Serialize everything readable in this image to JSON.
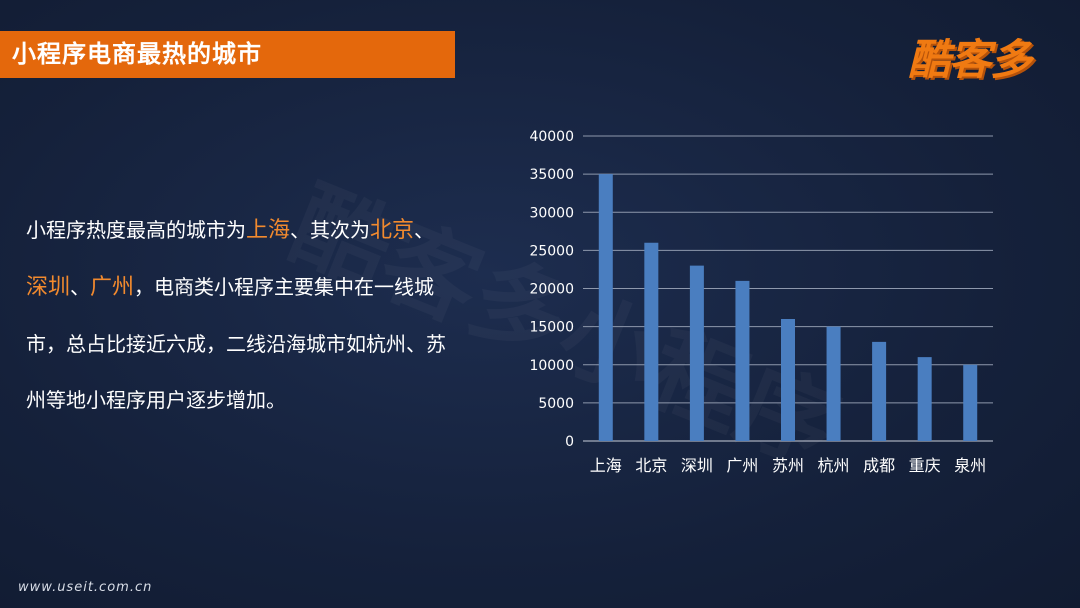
{
  "slide": {
    "title": "小程序电商最热的城市",
    "logo": "酷客多",
    "watermark": "酷客多小程序",
    "footer": "www.useit.com.cn",
    "colors": {
      "accent": "#e4680c",
      "highlight": "#f28a2e",
      "bar": "#4a7ec0",
      "background": "#16223d"
    }
  },
  "paragraph": {
    "part1": "小程序热度最高的城市为",
    "city1": "上海",
    "part2": "、其次为",
    "city2": "北京",
    "part3": "、",
    "city3": "深圳",
    "part4": "、",
    "city4": "广州",
    "part5": "，电商类小程序主要集中在一线城市，总占比接近六成，二线沿海城市如杭州、苏州等地小程序用户逐步增加。"
  },
  "chart_data": {
    "type": "bar",
    "categories": [
      "上海",
      "北京",
      "深圳",
      "广州",
      "苏州",
      "杭州",
      "成都",
      "重庆",
      "泉州"
    ],
    "values": [
      35000,
      26000,
      23000,
      21000,
      16000,
      15000,
      13000,
      11000,
      10000
    ],
    "ylim": [
      0,
      40000
    ],
    "yticks": [
      0,
      5000,
      10000,
      15000,
      20000,
      25000,
      30000,
      35000,
      40000
    ],
    "grid": true,
    "legend": "none",
    "color": "#4a7ec0"
  }
}
